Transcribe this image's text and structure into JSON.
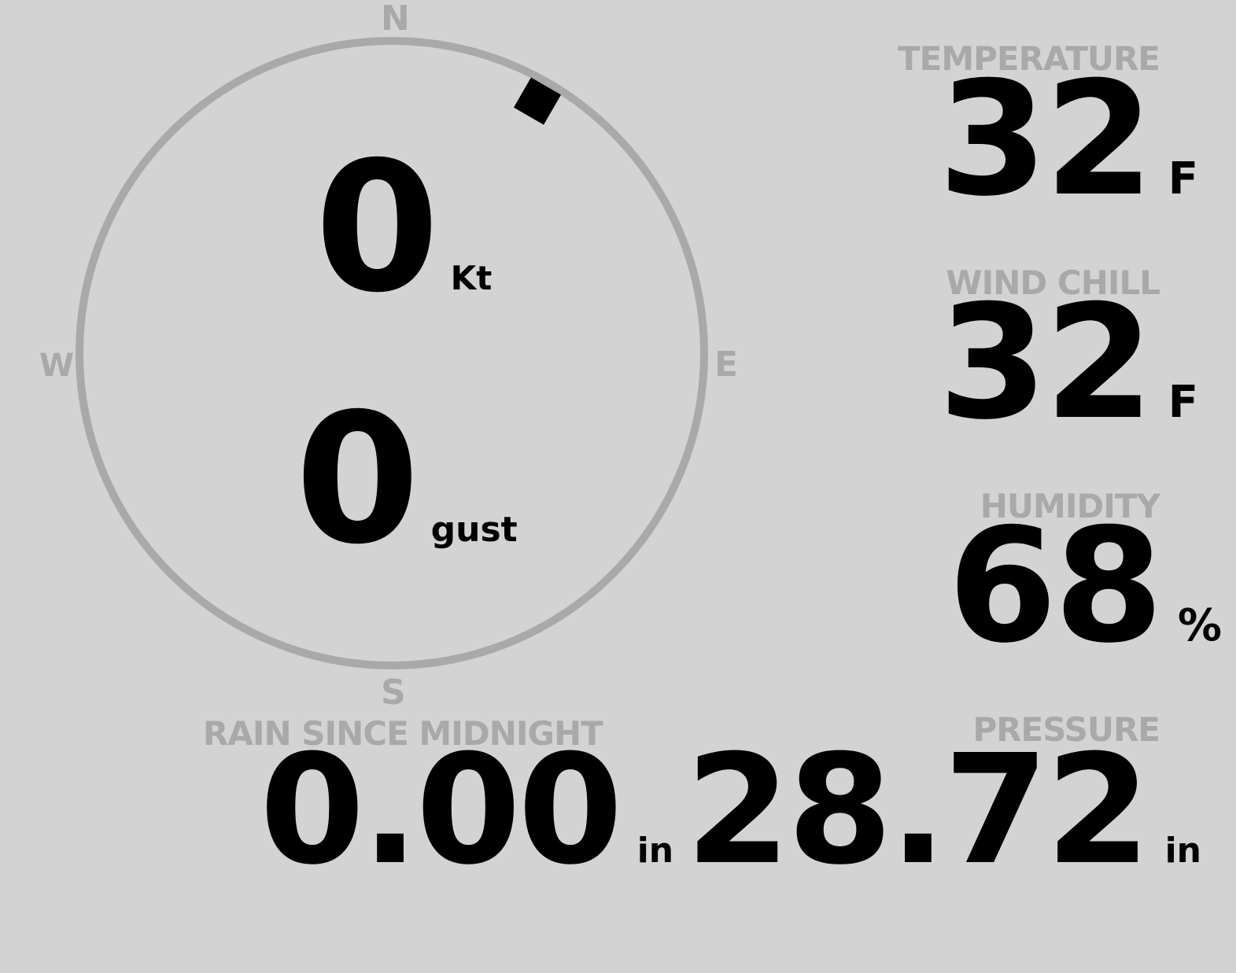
{
  "compass": {
    "cardinals": {
      "n": "N",
      "e": "E",
      "s": "S",
      "w": "W"
    },
    "wind_direction_deg": 30,
    "ring_color": "#a9a9a9"
  },
  "wind": {
    "speed": "0",
    "speed_unit": "Kt",
    "gust": "0",
    "gust_unit": "gust"
  },
  "temperature": {
    "label": "TEMPERATURE",
    "value": "32",
    "unit": "F"
  },
  "wind_chill": {
    "label": "WIND CHILL",
    "value": "32",
    "unit": "F"
  },
  "humidity": {
    "label": "HUMIDITY",
    "value": "68",
    "unit": "%"
  },
  "rain": {
    "label": "RAIN SINCE MIDNIGHT",
    "value": "0.00",
    "unit": "in"
  },
  "pressure": {
    "label": "PRESSURE",
    "value": "28.72",
    "unit": "in"
  }
}
